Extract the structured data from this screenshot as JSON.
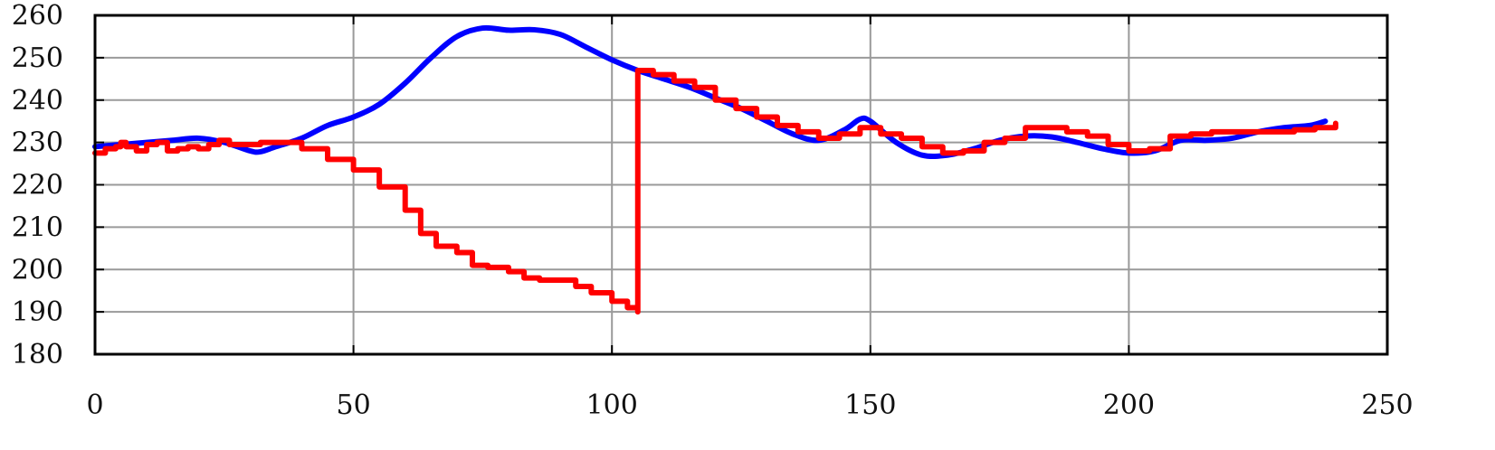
{
  "chart_data": {
    "type": "line",
    "title": "",
    "xlabel": "",
    "ylabel": "",
    "xlim": [
      0,
      250
    ],
    "ylim": [
      180,
      260
    ],
    "x_ticks": [
      "0",
      "50",
      "100",
      "150",
      "200",
      "250"
    ],
    "y_ticks": [
      "180",
      "190",
      "200",
      "210",
      "220",
      "230",
      "240",
      "250",
      "260"
    ],
    "x_tick_values": [
      0,
      50,
      100,
      150,
      200,
      250
    ],
    "y_tick_values": [
      180,
      190,
      200,
      210,
      220,
      230,
      240,
      250,
      260
    ],
    "grid": true,
    "legend": "none",
    "series": [
      {
        "color": "#0000ff",
        "style": "smooth",
        "points": [
          [
            0,
            229
          ],
          [
            5,
            229.5
          ],
          [
            10,
            230
          ],
          [
            15,
            230.5
          ],
          [
            20,
            231
          ],
          [
            25,
            230
          ],
          [
            30,
            228
          ],
          [
            32,
            227.8
          ],
          [
            35,
            229
          ],
          [
            40,
            231
          ],
          [
            45,
            234
          ],
          [
            50,
            236
          ],
          [
            55,
            239
          ],
          [
            60,
            244
          ],
          [
            65,
            250
          ],
          [
            70,
            255
          ],
          [
            75,
            257
          ],
          [
            80,
            256.5
          ],
          [
            85,
            256.6
          ],
          [
            90,
            255.5
          ],
          [
            95,
            252.5
          ],
          [
            100,
            249.5
          ],
          [
            105,
            247
          ],
          [
            110,
            245
          ],
          [
            115,
            243
          ],
          [
            120,
            240.5
          ],
          [
            125,
            238
          ],
          [
            130,
            235
          ],
          [
            135,
            232
          ],
          [
            140,
            230.5
          ],
          [
            145,
            233
          ],
          [
            148,
            235.5
          ],
          [
            150,
            235
          ],
          [
            155,
            230
          ],
          [
            160,
            227
          ],
          [
            165,
            227
          ],
          [
            170,
            228.5
          ],
          [
            175,
            230.5
          ],
          [
            180,
            231.5
          ],
          [
            185,
            231.3
          ],
          [
            190,
            230
          ],
          [
            195,
            228.5
          ],
          [
            200,
            227.5
          ],
          [
            205,
            228
          ],
          [
            210,
            230.5
          ],
          [
            215,
            230.5
          ],
          [
            220,
            231
          ],
          [
            225,
            232.5
          ],
          [
            230,
            233.5
          ],
          [
            235,
            234
          ],
          [
            238,
            235
          ]
        ]
      },
      {
        "color": "#ff0000",
        "style": "noisy-step",
        "points": [
          [
            0,
            227.5
          ],
          [
            2,
            228.5
          ],
          [
            4,
            229
          ],
          [
            5,
            230
          ],
          [
            6,
            229
          ],
          [
            8,
            228
          ],
          [
            10,
            229.5
          ],
          [
            12,
            230
          ],
          [
            14,
            228
          ],
          [
            16,
            228.5
          ],
          [
            18,
            229
          ],
          [
            20,
            228.5
          ],
          [
            22,
            229.5
          ],
          [
            24,
            230.5
          ],
          [
            26,
            229.5
          ],
          [
            28,
            229.5
          ],
          [
            30,
            229.5
          ],
          [
            32,
            230
          ],
          [
            35,
            230
          ],
          [
            40,
            228.5
          ],
          [
            45,
            226
          ],
          [
            50,
            223.5
          ],
          [
            55,
            219.5
          ],
          [
            60,
            214
          ],
          [
            63,
            208.5
          ],
          [
            66,
            205.5
          ],
          [
            70,
            204
          ],
          [
            73,
            201
          ],
          [
            76,
            200.5
          ],
          [
            80,
            199.5
          ],
          [
            83,
            198
          ],
          [
            86,
            197.5
          ],
          [
            90,
            197.5
          ],
          [
            93,
            196
          ],
          [
            96,
            194.5
          ],
          [
            100,
            192.5
          ],
          [
            103,
            191
          ],
          [
            105,
            190
          ],
          [
            105,
            247
          ],
          [
            108,
            246
          ],
          [
            112,
            244.5
          ],
          [
            116,
            243
          ],
          [
            120,
            240
          ],
          [
            124,
            238
          ],
          [
            128,
            236
          ],
          [
            132,
            234
          ],
          [
            136,
            232.5
          ],
          [
            140,
            231
          ],
          [
            144,
            232
          ],
          [
            148,
            233.5
          ],
          [
            152,
            232
          ],
          [
            156,
            231
          ],
          [
            160,
            229
          ],
          [
            164,
            227.5
          ],
          [
            168,
            228
          ],
          [
            172,
            230
          ],
          [
            176,
            231
          ],
          [
            180,
            233.5
          ],
          [
            184,
            233.5
          ],
          [
            188,
            232.5
          ],
          [
            192,
            231.5
          ],
          [
            196,
            229.5
          ],
          [
            200,
            228
          ],
          [
            204,
            228.5
          ],
          [
            208,
            231.5
          ],
          [
            212,
            232
          ],
          [
            216,
            232.5
          ],
          [
            220,
            232.5
          ],
          [
            224,
            232.5
          ],
          [
            228,
            232.5
          ],
          [
            232,
            233
          ],
          [
            236,
            233.5
          ],
          [
            240,
            234.5
          ]
        ]
      }
    ]
  }
}
